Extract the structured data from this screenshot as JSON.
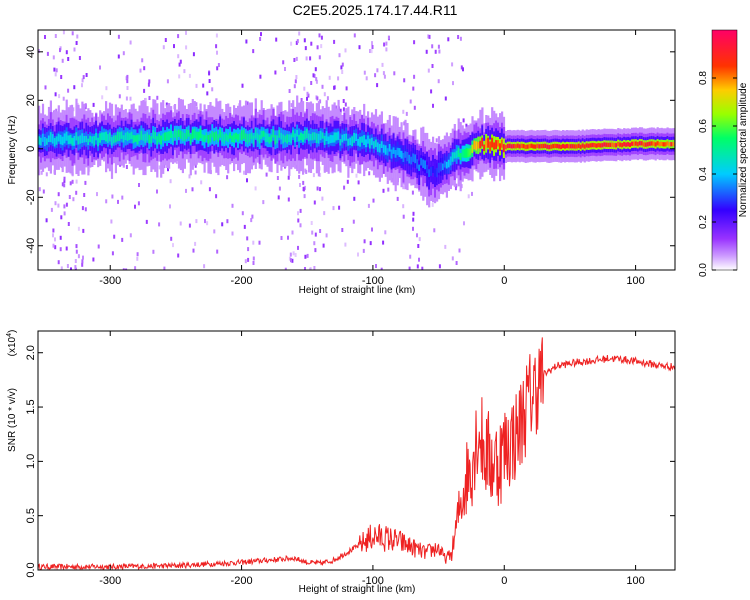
{
  "title": "C2E5.2025.174.17.44.R11",
  "chart_data": [
    {
      "type": "heatmap",
      "xlabel": "Height of straight line (km)",
      "ylabel": "Frequency (Hz)",
      "xlim": [
        -355,
        130
      ],
      "ylim": [
        -50,
        49
      ],
      "xticks": [
        -300,
        -200,
        -100,
        0,
        100
      ],
      "yticks": [
        -40,
        -20,
        0,
        20,
        40
      ],
      "colorbar": {
        "label": "Normalized spectral amplitude",
        "range": [
          0.0,
          1.0
        ],
        "ticks": [
          "0.0",
          "0.2",
          "0.4",
          "0.6",
          "0.8"
        ],
        "colormap": [
          "#ffffff",
          "#cc99ff",
          "#9933ff",
          "#3300ff",
          "#00ccff",
          "#00ff66",
          "#99ff00",
          "#ffcc00",
          "#ff3300",
          "#ff0066"
        ]
      },
      "ridge": {
        "x": [
          -350,
          -300,
          -250,
          -200,
          -150,
          -120,
          -100,
          -80,
          -60,
          -55,
          -45,
          -30,
          -20,
          0,
          20,
          50,
          100,
          130
        ],
        "freq": [
          4,
          4,
          5,
          5,
          5,
          4,
          2,
          -2,
          -8,
          -10,
          -6,
          -1,
          2,
          1,
          1,
          1,
          2,
          2
        ],
        "peak_amplitude": [
          0.45,
          0.5,
          0.55,
          0.55,
          0.5,
          0.45,
          0.45,
          0.4,
          0.35,
          0.3,
          0.4,
          0.6,
          0.9,
          0.95,
          0.95,
          0.95,
          0.95,
          0.9
        ]
      }
    },
    {
      "type": "line",
      "xlabel": "Height of straight line (km)",
      "ylabel": "SNR (10 * v/v)",
      "multiplier": "(x10",
      "multiplier_exp": "4",
      "multiplier_close": ")",
      "xlim": [
        -355,
        130
      ],
      "ylim": [
        0,
        2.2
      ],
      "xticks": [
        -300,
        -200,
        -100,
        0,
        100
      ],
      "yticks": [
        "0.0",
        "0.5",
        "1.0",
        "1.5",
        "2.0"
      ],
      "color": "#ee2222",
      "series": [
        {
          "x": [
            -355,
            -300,
            -250,
            -200,
            -160,
            -150,
            -140,
            -130,
            -120,
            -110,
            -100,
            -90,
            -80,
            -70,
            -60,
            -50,
            -45,
            -40,
            -35,
            -30,
            -25,
            -20,
            -15,
            -10,
            -5,
            0,
            5,
            10,
            15,
            20,
            25,
            30,
            40,
            50,
            60,
            70,
            80,
            90,
            100,
            110,
            120,
            130
          ],
          "y": [
            0.02,
            0.02,
            0.03,
            0.06,
            0.1,
            0.06,
            0.05,
            0.08,
            0.15,
            0.22,
            0.3,
            0.28,
            0.25,
            0.2,
            0.15,
            0.2,
            0.1,
            0.15,
            0.5,
            0.8,
            1.0,
            1.3,
            1.1,
            1.0,
            1.0,
            1.1,
            1.2,
            1.25,
            1.45,
            1.6,
            1.7,
            1.8,
            1.88,
            1.9,
            1.92,
            1.93,
            1.95,
            1.94,
            1.92,
            1.9,
            1.88,
            1.87
          ]
        }
      ]
    }
  ]
}
